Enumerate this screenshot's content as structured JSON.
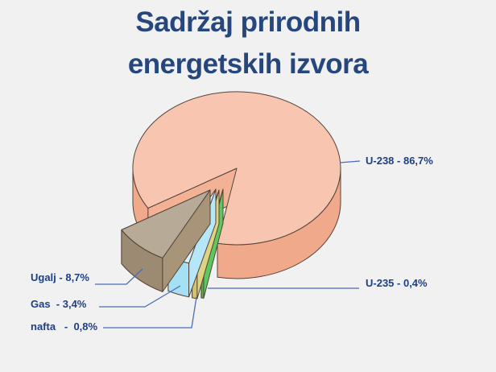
{
  "slide": {
    "background_color": "#f1f1f1"
  },
  "title": {
    "lines": [
      "Sadržaj prirodnih",
      "energetskih izvora"
    ],
    "color": "#26477e"
  },
  "chart_data": {
    "type": "pie",
    "style": "3d-exploded-pie",
    "title": "Sadržaj prirodnih energetskih izvora",
    "unit": "%",
    "decimal_style": "comma",
    "total": 100,
    "legend": "callout-labels",
    "label_color": "#1d3f86",
    "leader_line_color": "#4a6db3",
    "outline_color": "#54453b",
    "slices": [
      {
        "label": "U-235",
        "value": 0.4,
        "display": "U-235 - 0,4%",
        "exploded": true,
        "colors": {
          "top": "#bfe5ab",
          "side": "#4fb34f",
          "wall": "#5ec75e"
        }
      },
      {
        "label": "nafta",
        "value": 0.8,
        "display": "nafta   -  0,8%",
        "exploded": true,
        "colors": {
          "top": "#efe9b4",
          "side": "#d0c56c",
          "wall": "#ddd383"
        }
      },
      {
        "label": "Gas",
        "value": 3.4,
        "display": "Gas  - 3,4%",
        "exploded": true,
        "colors": {
          "top": "#dcf2fb",
          "side": "#a5e0f5",
          "wall": "#b5e7f9"
        }
      },
      {
        "label": "Ugalj",
        "value": 8.7,
        "display": "Ugalj - 8,7%",
        "exploded": true,
        "colors": {
          "top": "#b7ab97",
          "side": "#9c8a73",
          "wall": "#a89478"
        }
      },
      {
        "label": "U-238",
        "value": 86.7,
        "display": "U-238 - 86,7%",
        "exploded": false,
        "colors": {
          "top": "#f7c5b0",
          "side": "#f0a98b",
          "wall": "#f3b295"
        }
      }
    ]
  }
}
